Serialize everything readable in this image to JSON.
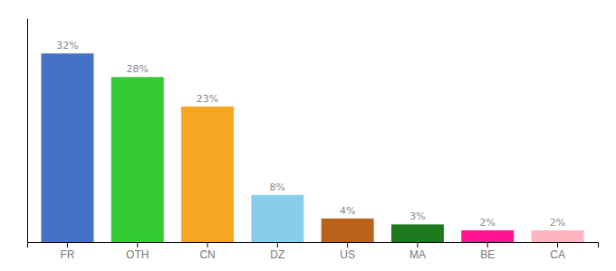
{
  "chart_data": {
    "type": "bar",
    "categories": [
      "FR",
      "OTH",
      "CN",
      "DZ",
      "US",
      "MA",
      "BE",
      "CA"
    ],
    "values": [
      32,
      28,
      23,
      8,
      4,
      3,
      2,
      2
    ],
    "value_labels": [
      "32%",
      "28%",
      "23%",
      "8%",
      "4%",
      "3%",
      "2%",
      "2%"
    ],
    "colors": [
      "#4472c4",
      "#33cc33",
      "#f5a623",
      "#87ceeb",
      "#b8621a",
      "#1e7a1e",
      "#ff1493",
      "#ffb6c1"
    ],
    "ylim": [
      0,
      38
    ],
    "data_labels": true,
    "tick_labels": "x"
  }
}
